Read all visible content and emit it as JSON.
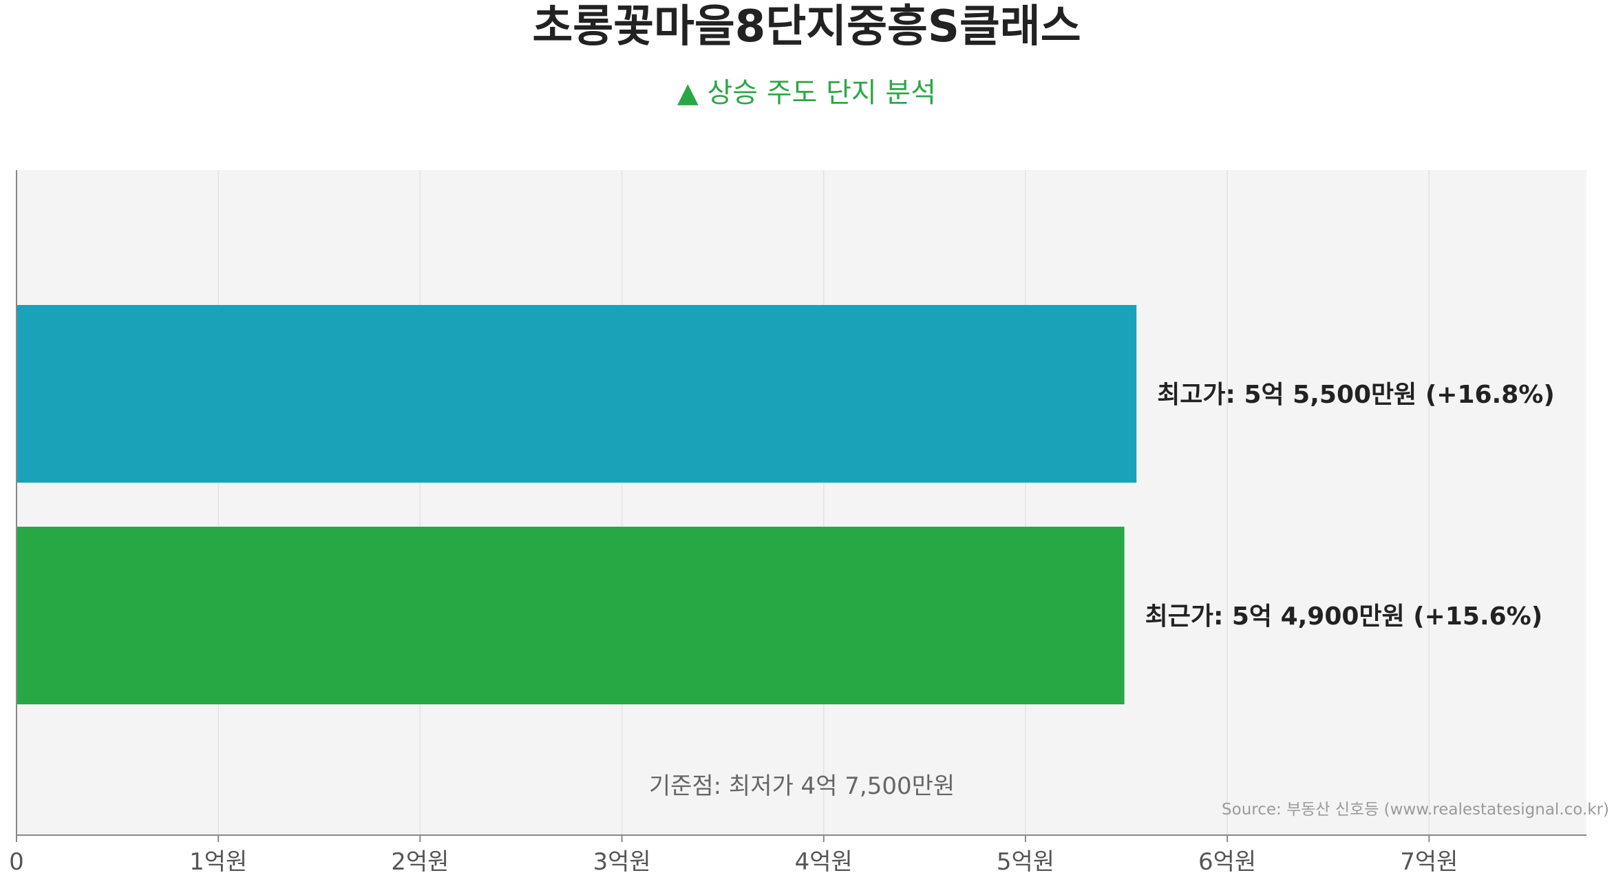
{
  "chart_data": {
    "type": "bar",
    "orientation": "horizontal",
    "title": "초롱꽃마을8단지중흥S클래스",
    "subtitle": "▲ 상승 주도 단지 분석",
    "categories": [
      "최고가",
      "최근가"
    ],
    "values": [
      5.55,
      5.49
    ],
    "unit": "억원",
    "bar_labels": [
      "최고가: 5억 5,500만원  (+16.8%)",
      "최근가: 5억 4,900만원  (+15.6%)"
    ],
    "colors": [
      "#19a2b8",
      "#28a745"
    ],
    "xlim": [
      0,
      7.78
    ],
    "x_ticks": [
      {
        "value": 0,
        "label": "0"
      },
      {
        "value": 1,
        "label": "1억원"
      },
      {
        "value": 2,
        "label": "2억원"
      },
      {
        "value": 3,
        "label": "3억원"
      },
      {
        "value": 4,
        "label": "4억원"
      },
      {
        "value": 5,
        "label": "5억원"
      },
      {
        "value": 6,
        "label": "6억원"
      },
      {
        "value": 7,
        "label": "7억원"
      }
    ],
    "grid": true,
    "baseline_note": "기준점: 최저가 4억 7,500만원",
    "source": "Source: 부동산 신호등 (www.realestatesignal.co.kr)"
  },
  "colors": {
    "subtitle": "#2aa745",
    "plot_background": "#f4f4f4",
    "grid": "#e2e2e2",
    "axis": "#888888"
  }
}
